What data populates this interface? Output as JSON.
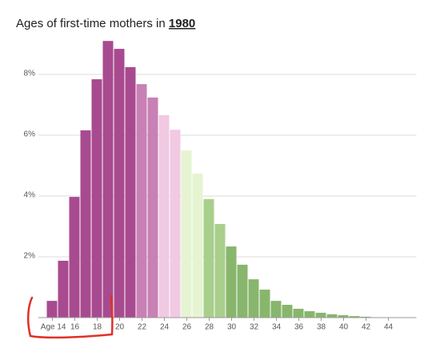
{
  "chart_data": {
    "type": "histogram",
    "title": "Ages of first-time mothers in",
    "title_highlight": "1980",
    "x": [
      14,
      15,
      16,
      17,
      18,
      19,
      20,
      21,
      22,
      23,
      24,
      25,
      26,
      27,
      28,
      29,
      30,
      31,
      32,
      33,
      34,
      35,
      36,
      37,
      38,
      39,
      40,
      41,
      42
    ],
    "values": [
      0.55,
      1.87,
      3.97,
      6.16,
      7.84,
      9.1,
      8.84,
      8.24,
      7.68,
      7.24,
      6.66,
      6.18,
      5.5,
      4.74,
      3.9,
      3.08,
      2.34,
      1.74,
      1.26,
      0.92,
      0.55,
      0.42,
      0.29,
      0.21,
      0.16,
      0.11,
      0.08,
      0.05,
      0.03
    ],
    "colors": [
      "#a84a8f",
      "#a84a8f",
      "#a84a8f",
      "#a84a8f",
      "#a84a8f",
      "#a84a8f",
      "#a84a8f",
      "#a84a8f",
      "#c880b5",
      "#c880b5",
      "#f1c9e3",
      "#f1c9e3",
      "#e6f4d2",
      "#e6f4d2",
      "#a9cf8c",
      "#a9cf8c",
      "#87b66c",
      "#87b66c",
      "#87b66c",
      "#87b66c",
      "#87b66c",
      "#87b66c",
      "#87b66c",
      "#87b66c",
      "#87b66c",
      "#87b66c",
      "#87b66c",
      "#87b66c",
      "#87b66c"
    ],
    "xlim": [
      12,
      46.5
    ],
    "xticks": [
      {
        "value": 14,
        "label": "Age 14"
      },
      16,
      18,
      20,
      22,
      24,
      26,
      28,
      30,
      32,
      34,
      36,
      38,
      40,
      42,
      44
    ],
    "ylim": [
      0,
      9.2
    ],
    "yticks": [
      {
        "value": 2,
        "label": "2%"
      },
      {
        "value": 4,
        "label": "4%"
      },
      {
        "value": 6,
        "label": "6%"
      },
      {
        "value": 8,
        "label": "8%"
      }
    ],
    "grid": true
  }
}
